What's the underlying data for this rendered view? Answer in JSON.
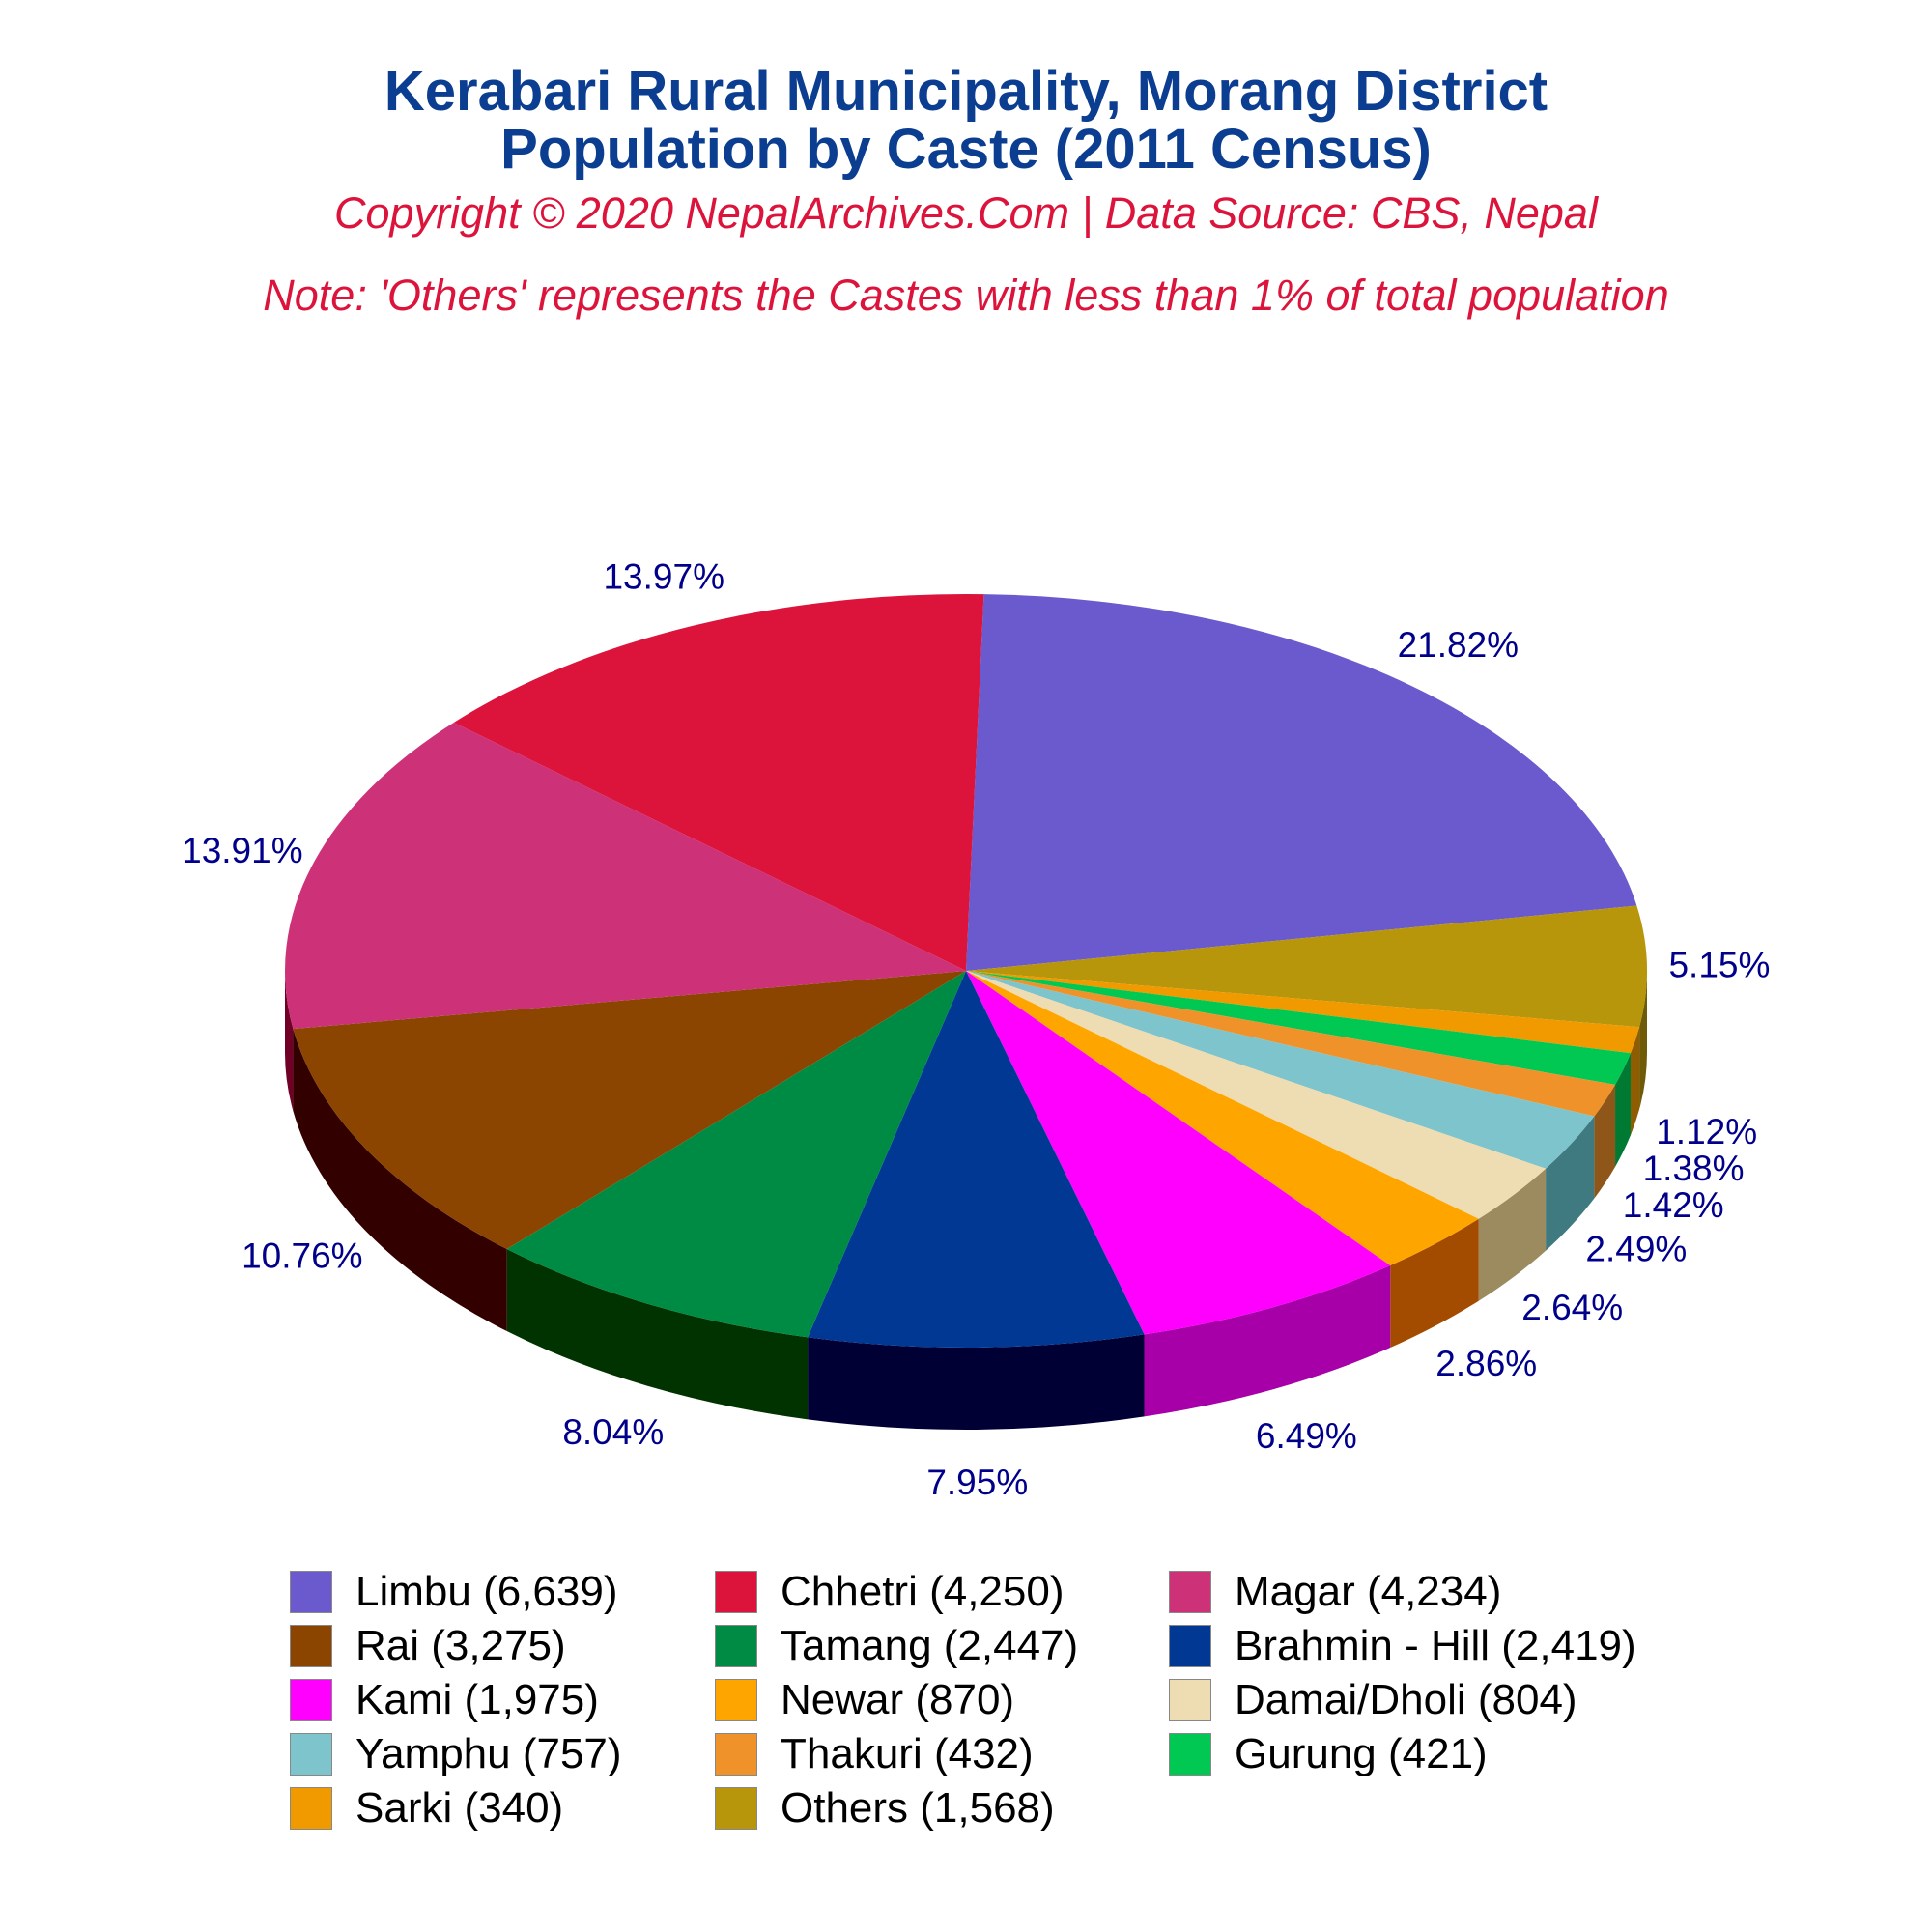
{
  "title": {
    "line1": "Kerabari Rural Municipality, Morang District",
    "line2": "Population by Caste (2011 Census)"
  },
  "subtitle": "Copyright © 2020 NepalArchives.Com | Data Source: CBS, Nepal",
  "note": "Note: 'Others' represents the Castes with less than 1% of total population",
  "chart_data": {
    "type": "pie",
    "style": "3d",
    "legend_position": "bottom",
    "slices": [
      {
        "label": "Limbu (6,639)",
        "value": 6639,
        "percent_label": "21.82%",
        "color": "#6a5acd",
        "side_color": "#3f3680"
      },
      {
        "label": "Others (1,568)",
        "value": 1568,
        "percent_label": "5.15%",
        "color": "#b8960c",
        "side_color": "#6e5a07"
      },
      {
        "label": "Sarki (340)",
        "value": 340,
        "percent_label": "1.12%",
        "color": "#f09a00",
        "side_color": "#905c00"
      },
      {
        "label": "Gurung (421)",
        "value": 421,
        "percent_label": "1.38%",
        "color": "#00c853",
        "side_color": "#007a32"
      },
      {
        "label": "Thakuri (432)",
        "value": 432,
        "percent_label": "1.42%",
        "color": "#f0922a",
        "side_color": "#8f5619"
      },
      {
        "label": "Yamphu (757)",
        "value": 757,
        "percent_label": "2.49%",
        "color": "#7ec4cc",
        "side_color": "#3e7a80"
      },
      {
        "label": "Damai/Dholi (804)",
        "value": 804,
        "percent_label": "2.64%",
        "color": "#eedcb2",
        "side_color": "#9b8b5e"
      },
      {
        "label": "Newar (870)",
        "value": 870,
        "percent_label": "2.86%",
        "color": "#ffa500",
        "side_color": "#a34c00"
      },
      {
        "label": "Kami (1,975)",
        "value": 1975,
        "percent_label": "6.49%",
        "color": "#ff00ff",
        "side_color": "#a800a8"
      },
      {
        "label": "Brahmin - Hill (2,419)",
        "value": 2419,
        "percent_label": "7.95%",
        "color": "#003893",
        "side_color": "#000035"
      },
      {
        "label": "Tamang (2,447)",
        "value": 2447,
        "percent_label": "8.04%",
        "color": "#008b45",
        "side_color": "#003300"
      },
      {
        "label": "Rai (3,275)",
        "value": 3275,
        "percent_label": "10.76%",
        "color": "#8b4500",
        "side_color": "#330000"
      },
      {
        "label": "Magar (4,234)",
        "value": 4234,
        "percent_label": "13.91%",
        "color": "#cd3278",
        "side_color": "#700025"
      },
      {
        "label": "Chhetri (4,250)",
        "value": 4250,
        "percent_label": "13.97%",
        "color": "#dc143c",
        "side_color": "#7a0a20"
      }
    ],
    "legend": [
      {
        "label": "Limbu (6,639)",
        "color": "#6a5acd"
      },
      {
        "label": "Chhetri (4,250)",
        "color": "#dc143c"
      },
      {
        "label": "Magar (4,234)",
        "color": "#cd3278"
      },
      {
        "label": "Rai (3,275)",
        "color": "#8b4500"
      },
      {
        "label": "Tamang (2,447)",
        "color": "#008b45"
      },
      {
        "label": "Brahmin - Hill (2,419)",
        "color": "#003893"
      },
      {
        "label": "Kami (1,975)",
        "color": "#ff00ff"
      },
      {
        "label": "Newar (870)",
        "color": "#ffa500"
      },
      {
        "label": "Damai/Dholi (804)",
        "color": "#eedcb2"
      },
      {
        "label": "Yamphu (757)",
        "color": "#7ec4cc"
      },
      {
        "label": "Thakuri (432)",
        "color": "#f0922a"
      },
      {
        "label": "Gurung (421)",
        "color": "#00c853"
      },
      {
        "label": "Sarki (340)",
        "color": "#f09a00"
      },
      {
        "label": "Others (1,568)",
        "color": "#b8960c"
      }
    ]
  }
}
